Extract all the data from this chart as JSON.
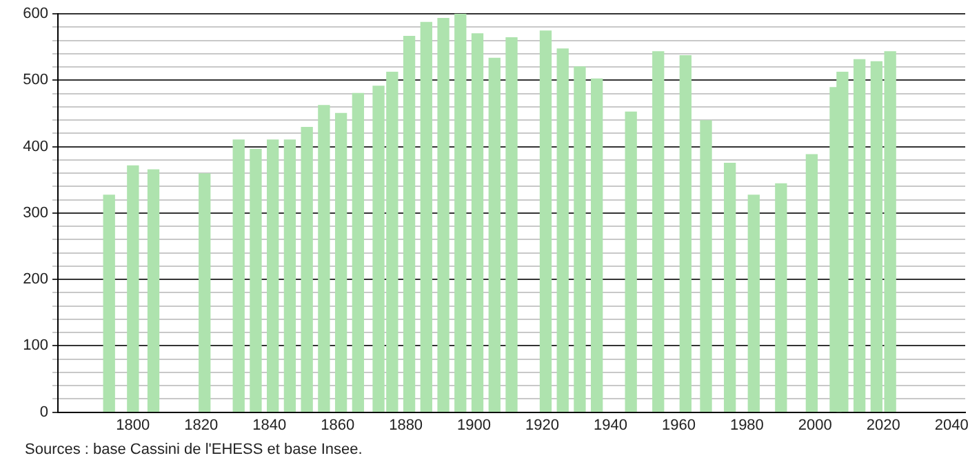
{
  "chart_data": {
    "type": "bar",
    "x": [
      1793,
      1800,
      1806,
      1821,
      1831,
      1836,
      1841,
      1846,
      1851,
      1856,
      1861,
      1866,
      1872,
      1876,
      1881,
      1886,
      1891,
      1896,
      1901,
      1906,
      1911,
      1921,
      1926,
      1931,
      1936,
      1946,
      1954,
      1962,
      1968,
      1975,
      1982,
      1990,
      1999,
      2006,
      2008,
      2013,
      2018,
      2022
    ],
    "values": [
      327,
      371,
      365,
      359,
      410,
      396,
      410,
      410,
      429,
      462,
      450,
      480,
      491,
      512,
      566,
      587,
      593,
      600,
      570,
      533,
      564,
      574,
      547,
      520,
      502,
      452,
      543,
      537,
      439,
      375,
      327,
      344,
      388,
      489,
      512,
      531,
      528,
      543
    ],
    "color": "#aee3ae",
    "xlim": [
      1778,
      2044
    ],
    "xticks": [
      1800,
      1820,
      1840,
      1860,
      1880,
      1900,
      1920,
      1940,
      1960,
      1980,
      2000,
      2020,
      2040
    ],
    "ylim": [
      0,
      600
    ],
    "yticks": [
      0,
      {
        "value": 20,
        "label": null
      },
      {
        "value": 40,
        "label": null
      },
      {
        "value": 60,
        "label": null
      },
      {
        "value": 80,
        "label": null
      },
      100,
      {
        "value": 120,
        "label": null
      },
      {
        "value": 140,
        "label": null
      },
      {
        "value": 160,
        "label": null
      },
      {
        "value": 180,
        "label": null
      },
      200,
      {
        "value": 220,
        "label": null
      },
      {
        "value": 240,
        "label": null
      },
      {
        "value": 260,
        "label": null
      },
      {
        "value": 280,
        "label": null
      },
      300,
      {
        "value": 320,
        "label": null
      },
      {
        "value": 340,
        "label": null
      },
      {
        "value": 360,
        "label": null
      },
      {
        "value": 380,
        "label": null
      },
      400,
      {
        "value": 420,
        "label": null
      },
      {
        "value": 440,
        "label": null
      },
      {
        "value": 460,
        "label": null
      },
      {
        "value": 480,
        "label": null
      },
      500,
      {
        "value": 520,
        "label": null
      },
      {
        "value": 540,
        "label": null
      },
      {
        "value": 560,
        "label": null
      },
      {
        "value": 580,
        "label": null
      },
      600
    ],
    "grid": "y",
    "annotations": [
      "Sources : base Cassini de l'EHESS et base Insee."
    ]
  }
}
